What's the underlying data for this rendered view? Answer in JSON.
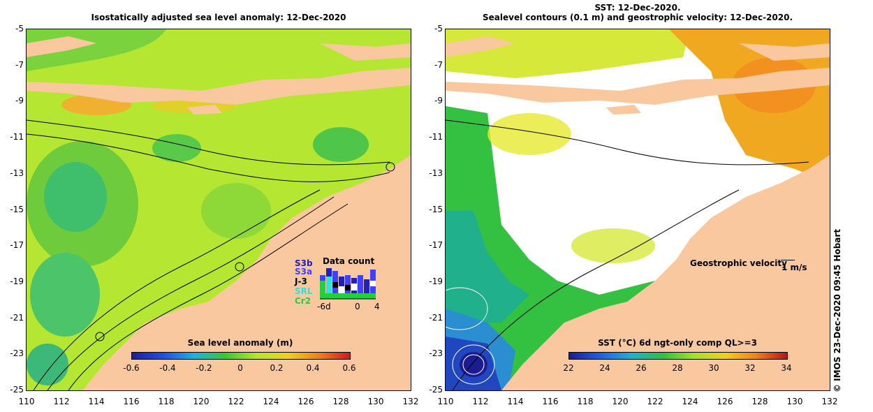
{
  "left_panel": {
    "title": "Isostatically adjusted sea level anomaly: 12-Dec-2020",
    "colorbar_title": "Sea level anomaly (m)",
    "colorbar_ticks": [
      "-0.6",
      "-0.4",
      "-0.2",
      "0",
      "0.2",
      "0.4",
      "0.6"
    ],
    "data_count": {
      "title": "Data count",
      "satellites": [
        {
          "label": "S3b",
          "color": "#2020c0"
        },
        {
          "label": "S3a",
          "color": "#4040ff"
        },
        {
          "label": "J-3",
          "color": "#000000"
        },
        {
          "label": "SRL",
          "color": "#30e0e0"
        },
        {
          "label": "Cr2",
          "color": "#20d040"
        }
      ],
      "axis_ticks": [
        "-6d",
        "0",
        "4"
      ]
    }
  },
  "right_panel": {
    "title_line1": "SST: 12-Dec-2020.",
    "title_line2": "Sealevel contours (0.1 m) and geostrophic velocity: 12-Dec-2020.",
    "velocity_label": "Geostrophic velocity",
    "velocity_scale": "1 m/s",
    "colorbar_title": "SST (°C) 6d ngt-only comp QL>=3",
    "colorbar_ticks": [
      "22",
      "24",
      "26",
      "28",
      "30",
      "32",
      "34"
    ]
  },
  "axes": {
    "y_ticks": [
      "-5",
      "-7",
      "-9",
      "-11",
      "-13",
      "-15",
      "-17",
      "-19",
      "-21",
      "-23",
      "-25"
    ],
    "x_ticks": [
      "110",
      "112",
      "114",
      "116",
      "118",
      "120",
      "122",
      "124",
      "126",
      "128",
      "130",
      "132"
    ]
  },
  "colors": {
    "land": "#f9c89e",
    "sla_low": "#1e1e9c",
    "sla_zero": "#38c832",
    "sla_high": "#c81e1e",
    "sst_low": "#1c1c90",
    "sst_high": "#b01818"
  },
  "credit": "© IMOS 23-Dec-2020 09:45 Hobart"
}
